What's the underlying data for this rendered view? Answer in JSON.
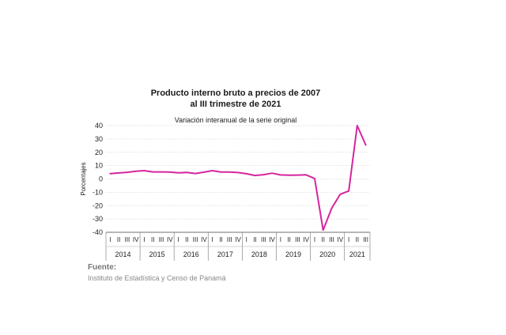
{
  "chart_data": {
    "type": "line",
    "title": "Producto interno bruto a precios de 2007",
    "title_line2": "al III trimestre de 2021",
    "subtitle": "Variación interanual de la serie original",
    "ylabel": "Porcentajes",
    "ylim": [
      -40,
      40
    ],
    "yticks": [
      40,
      30,
      20,
      10,
      0,
      -10,
      -20,
      -30,
      -40
    ],
    "grid": true,
    "line_color": "#d6249f",
    "quarter_labels": [
      "I",
      "II",
      "III",
      "IV"
    ],
    "years": [
      {
        "label": "2014",
        "quarters": 4
      },
      {
        "label": "2015",
        "quarters": 4
      },
      {
        "label": "2016",
        "quarters": 4
      },
      {
        "label": "2017",
        "quarters": 4
      },
      {
        "label": "2018",
        "quarters": 4
      },
      {
        "label": "2019",
        "quarters": 4
      },
      {
        "label": "2020",
        "quarters": 4
      },
      {
        "label": "2021",
        "quarters": 3
      }
    ],
    "values": [
      4.0,
      4.5,
      5.0,
      5.8,
      6.2,
      5.3,
      5.3,
      5.2,
      4.6,
      4.9,
      4.1,
      5.1,
      6.2,
      5.2,
      5.2,
      4.8,
      3.9,
      2.6,
      3.2,
      4.3,
      3.0,
      2.8,
      2.9,
      3.1,
      0.3,
      -38.4,
      -22.0,
      -11.5,
      -9.0,
      40.0,
      25.5
    ]
  },
  "source": {
    "heading": "Fuente:",
    "text": "Instituto de Estadística y Censo de Panamá"
  }
}
